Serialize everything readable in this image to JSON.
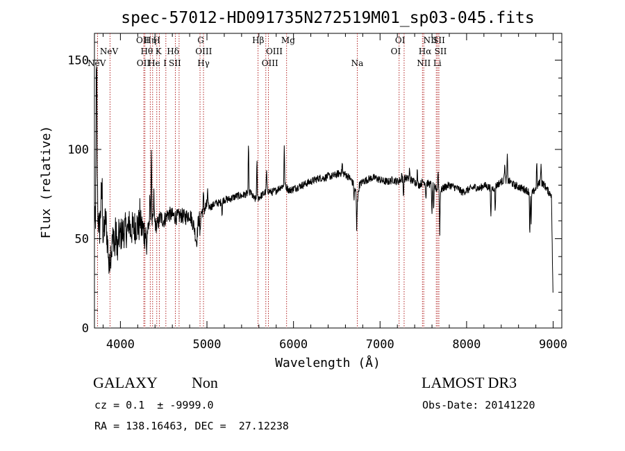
{
  "chart_data": {
    "type": "line",
    "title": "spec-57012-HD091735N272519M01_sp03-045.fits",
    "xlabel": "Wavelength (Å)",
    "ylabel": "Flux (relative)",
    "xlim": [
      3700,
      9100
    ],
    "ylim": [
      0,
      165
    ],
    "xticks": [
      4000,
      5000,
      6000,
      7000,
      8000,
      9000
    ],
    "yticks": [
      0,
      50,
      100,
      150
    ],
    "grid": false,
    "line_color": "#000000",
    "marker_color": "#b22222",
    "spectrum_anchors": [
      [
        3700,
        55
      ],
      [
        3720,
        125
      ],
      [
        3740,
        62
      ],
      [
        3760,
        55
      ],
      [
        3780,
        75
      ],
      [
        3800,
        50
      ],
      [
        3830,
        62
      ],
      [
        3850,
        48
      ],
      [
        3870,
        40
      ],
      [
        3900,
        45
      ],
      [
        3930,
        55
      ],
      [
        3960,
        50
      ],
      [
        4000,
        52
      ],
      [
        4050,
        55
      ],
      [
        4100,
        54
      ],
      [
        4150,
        56
      ],
      [
        4200,
        58
      ],
      [
        4250,
        56
      ],
      [
        4300,
        52
      ],
      [
        4340,
        58
      ],
      [
        4380,
        60
      ],
      [
        4420,
        57
      ],
      [
        4460,
        62
      ],
      [
        4500,
        60
      ],
      [
        4550,
        64
      ],
      [
        4600,
        63
      ],
      [
        4650,
        62
      ],
      [
        4700,
        63
      ],
      [
        4750,
        62
      ],
      [
        4800,
        64
      ],
      [
        4850,
        57
      ],
      [
        4880,
        48
      ],
      [
        4900,
        60
      ],
      [
        4950,
        66
      ],
      [
        5000,
        68
      ],
      [
        5050,
        68
      ],
      [
        5100,
        70
      ],
      [
        5150,
        70
      ],
      [
        5200,
        72
      ],
      [
        5250,
        72
      ],
      [
        5300,
        73
      ],
      [
        5350,
        74
      ],
      [
        5400,
        74
      ],
      [
        5450,
        75
      ],
      [
        5500,
        76
      ],
      [
        5550,
        72
      ],
      [
        5600,
        73
      ],
      [
        5650,
        75
      ],
      [
        5700,
        77
      ],
      [
        5750,
        76
      ],
      [
        5800,
        77
      ],
      [
        5850,
        79
      ],
      [
        5900,
        80
      ],
      [
        5950,
        77
      ],
      [
        6000,
        78
      ],
      [
        6050,
        79
      ],
      [
        6100,
        80
      ],
      [
        6150,
        81
      ],
      [
        6200,
        82
      ],
      [
        6250,
        83
      ],
      [
        6300,
        84
      ],
      [
        6350,
        84
      ],
      [
        6400,
        85
      ],
      [
        6450,
        85
      ],
      [
        6500,
        86
      ],
      [
        6550,
        87
      ],
      [
        6600,
        86
      ],
      [
        6650,
        84
      ],
      [
        6700,
        80
      ],
      [
        6740,
        72
      ],
      [
        6760,
        80
      ],
      [
        6800,
        82
      ],
      [
        6850,
        83
      ],
      [
        6900,
        84
      ],
      [
        6950,
        84
      ],
      [
        7000,
        83
      ],
      [
        7050,
        82
      ],
      [
        7100,
        82
      ],
      [
        7150,
        83
      ],
      [
        7200,
        82
      ],
      [
        7250,
        83
      ],
      [
        7300,
        84
      ],
      [
        7350,
        83
      ],
      [
        7400,
        82
      ],
      [
        7450,
        80
      ],
      [
        7500,
        82
      ],
      [
        7550,
        81
      ],
      [
        7600,
        80
      ],
      [
        7650,
        78
      ],
      [
        7700,
        77
      ],
      [
        7750,
        79
      ],
      [
        7800,
        80
      ],
      [
        7850,
        79
      ],
      [
        7900,
        78
      ],
      [
        7950,
        76
      ],
      [
        8000,
        77
      ],
      [
        8050,
        78
      ],
      [
        8100,
        79
      ],
      [
        8150,
        78
      ],
      [
        8200,
        80
      ],
      [
        8250,
        79
      ],
      [
        8300,
        78
      ],
      [
        8350,
        80
      ],
      [
        8400,
        82
      ],
      [
        8450,
        83
      ],
      [
        8500,
        82
      ],
      [
        8550,
        80
      ],
      [
        8600,
        79
      ],
      [
        8650,
        78
      ],
      [
        8700,
        77
      ],
      [
        8750,
        75
      ],
      [
        8800,
        78
      ],
      [
        8850,
        82
      ],
      [
        8900,
        80
      ],
      [
        8950,
        76
      ],
      [
        8980,
        75
      ],
      [
        9000,
        12
      ]
    ],
    "spectrum_features": [
      [
        3712,
        -45
      ],
      [
        3726,
        40
      ],
      [
        3790,
        15
      ],
      [
        3869,
        -10
      ],
      [
        3934,
        -15
      ],
      [
        3968,
        -12
      ],
      [
        4102,
        10
      ],
      [
        4227,
        8
      ],
      [
        4303,
        -10
      ],
      [
        4340,
        20
      ],
      [
        4358,
        48
      ],
      [
        4387,
        15
      ],
      [
        4920,
        -12
      ],
      [
        4959,
        8
      ],
      [
        5007,
        10
      ],
      [
        5175,
        -8
      ],
      [
        5480,
        28
      ],
      [
        5577,
        22
      ],
      [
        5688,
        12
      ],
      [
        5893,
        22
      ],
      [
        6563,
        6
      ],
      [
        6700,
        -8
      ],
      [
        6730,
        -20
      ],
      [
        7250,
        4
      ],
      [
        7270,
        -10
      ],
      [
        7340,
        6
      ],
      [
        7430,
        8
      ],
      [
        7530,
        -10
      ],
      [
        7600,
        -18
      ],
      [
        7620,
        -15
      ],
      [
        7670,
        12
      ],
      [
        7690,
        -25
      ],
      [
        8280,
        -20
      ],
      [
        8330,
        -15
      ],
      [
        8440,
        10
      ],
      [
        8470,
        14
      ],
      [
        8730,
        -25
      ],
      [
        8745,
        -18
      ],
      [
        8810,
        15
      ],
      [
        8860,
        12
      ]
    ],
    "markers": [
      {
        "name": "NeV",
        "x": 3726,
        "row": 3
      },
      {
        "name": "NeV",
        "x": 3869,
        "row": 2
      },
      {
        "name": "OII",
        "x": 4259,
        "row": 1
      },
      {
        "name": "OII",
        "x": 4265,
        "row": 3
      },
      {
        "name": "Hη",
        "x": 4345,
        "row": 1
      },
      {
        "name": "Hθ",
        "x": 4305,
        "row": 2
      },
      {
        "name": "H",
        "x": 4420,
        "row": 1
      },
      {
        "name": "He",
        "x": 4390,
        "row": 3
      },
      {
        "name": "K",
        "x": 4440,
        "row": 2
      },
      {
        "name": "I",
        "x": 4515,
        "row": 3
      },
      {
        "name": "Hδ",
        "x": 4608,
        "row": 2
      },
      {
        "name": "SII",
        "x": 4630,
        "row": 3
      },
      {
        "name": "G",
        "x": 4928,
        "row": 1
      },
      {
        "name": "OIII",
        "x": 4962,
        "row": 2
      },
      {
        "name": "Hγ",
        "x": 4960,
        "row": 3
      },
      {
        "name": "Hβ",
        "x": 5592,
        "row": 1
      },
      {
        "name": "OIII",
        "x": 5778,
        "row": 2
      },
      {
        "name": "OIII",
        "x": 5728,
        "row": 3
      },
      {
        "name": "Mg",
        "x": 5938,
        "row": 1
      },
      {
        "name": "Na",
        "x": 6737,
        "row": 3
      },
      {
        "name": "OI",
        "x": 7232,
        "row": 1
      },
      {
        "name": "OI",
        "x": 7182,
        "row": 2
      },
      {
        "name": "NII",
        "x": 7580,
        "row": 1
      },
      {
        "name": "SII",
        "x": 7680,
        "row": 1
      },
      {
        "name": "Hα",
        "x": 7520,
        "row": 2
      },
      {
        "name": "SII",
        "x": 7700,
        "row": 2
      },
      {
        "name": "NII",
        "x": 7505,
        "row": 3
      },
      {
        "name": "Li",
        "x": 7662,
        "row": 3
      }
    ],
    "marker_lines": [
      3736,
      3880,
      4270,
      4283,
      4345,
      4372,
      4420,
      4450,
      4525,
      4635,
      4678,
      4920,
      4960,
      5590,
      5680,
      5710,
      5920,
      6737,
      7220,
      7278,
      7490,
      7505,
      7650,
      7665,
      7680
    ]
  },
  "info": {
    "object_type": "GALAXY",
    "subclass": "Non",
    "survey": "LAMOST DR3",
    "cz": "cz = 0.1  ± -9999.0",
    "obs_date": "Obs-Date: 20141220",
    "radec": "RA = 138.16463, DEC =  27.12238"
  }
}
